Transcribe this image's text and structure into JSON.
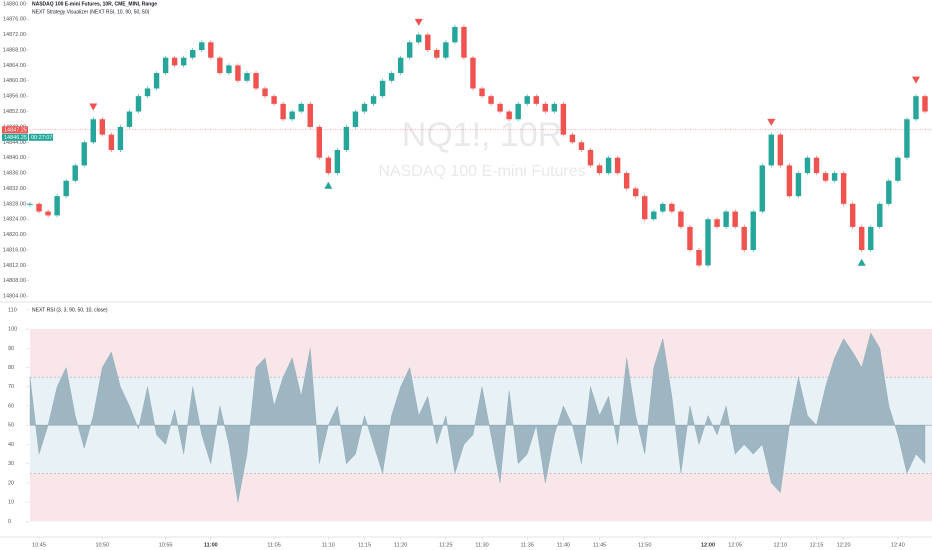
{
  "chart_data": {
    "type": "range-chart",
    "title": "NASDAQ 100 E-mini Futures, 10R, CME_MINI, Range",
    "subtitle": "NEXT Strategy Visualizer (NEXT RSI, 10, 90, 50, 50)",
    "watermark": "NQ1!, 10R",
    "watermark_subtitle": "NASDAQ 100 E-mini Futures",
    "last_price": 14847.25,
    "last_price_label": "14847.25",
    "bid_price": 14846.25,
    "bid_price_label": "14846.25",
    "countdown": "00:27:07",
    "up_color": "#26a69a",
    "down_color": "#ef5350",
    "ylim": [
      14803,
      14881
    ],
    "yticks": [
      {
        "value": 14804,
        "label": "14804.00"
      },
      {
        "value": 14808,
        "label": "14808.00"
      },
      {
        "value": 14812,
        "label": "14812.00"
      },
      {
        "value": 14816,
        "label": "14816.00"
      },
      {
        "value": 14820,
        "label": "14820.00"
      },
      {
        "value": 14824,
        "label": "14824.00"
      },
      {
        "value": 14828,
        "label": "14828.00"
      },
      {
        "value": 14832,
        "label": "14832.00"
      },
      {
        "value": 14836,
        "label": "14836.00"
      },
      {
        "value": 14840,
        "label": "14840.00"
      },
      {
        "value": 14844,
        "label": "14844.00"
      },
      {
        "value": 14848,
        "label": "14848.00"
      },
      {
        "value": 14852,
        "label": "14852.00"
      },
      {
        "value": 14856,
        "label": "14856.00"
      },
      {
        "value": 14860,
        "label": "14860.00"
      },
      {
        "value": 14864,
        "label": "14864.00"
      },
      {
        "value": 14868,
        "label": "14868.00"
      },
      {
        "value": 14872,
        "label": "14872.00"
      },
      {
        "value": 14876,
        "label": "14876.00"
      },
      {
        "value": 14880,
        "label": "14880.00"
      }
    ],
    "xlim": [
      0,
      99
    ],
    "xticks": [
      {
        "value": 1,
        "label": "10:45"
      },
      {
        "value": 8,
        "label": "10:50"
      },
      {
        "value": 15,
        "label": "10:55"
      },
      {
        "value": 20,
        "label": "11:00"
      },
      {
        "value": 27,
        "label": "11:05"
      },
      {
        "value": 33,
        "label": "11:10"
      },
      {
        "value": 37,
        "label": "11:15"
      },
      {
        "value": 41,
        "label": "11:20"
      },
      {
        "value": 46,
        "label": "11:25"
      },
      {
        "value": 50,
        "label": "11:30"
      },
      {
        "value": 55,
        "label": "11:35"
      },
      {
        "value": 59,
        "label": "11:40"
      },
      {
        "value": 63,
        "label": "11:45"
      },
      {
        "value": 68,
        "label": "11:50"
      },
      {
        "value": 75,
        "label": "12:00"
      },
      {
        "value": 78,
        "label": "12:05"
      },
      {
        "value": 83,
        "label": "12:10"
      },
      {
        "value": 87,
        "label": "12:15"
      },
      {
        "value": 90,
        "label": "12:20"
      },
      {
        "value": 96,
        "label": "12:40"
      }
    ],
    "values": [
      14828,
      14826,
      14825,
      14830,
      14834,
      14838,
      14844,
      14850,
      14846,
      14842,
      14848,
      14852,
      14856,
      14858,
      14862,
      14866,
      14864,
      14866,
      14868,
      14870,
      14866,
      14862,
      14864,
      14860,
      14862,
      14858,
      14856,
      14854,
      14850,
      14852,
      14854,
      14848,
      14840,
      14836,
      14842,
      14848,
      14852,
      14854,
      14856,
      14860,
      14862,
      14866,
      14870,
      14872,
      14868,
      14866,
      14870,
      14874,
      14866,
      14858,
      14856,
      14854,
      14852,
      14850,
      14854,
      14856,
      14854,
      14852,
      14854,
      14846,
      14844,
      14842,
      14838,
      14836,
      14840,
      14836,
      14832,
      14830,
      14824,
      14826,
      14828,
      14826,
      14822,
      14816,
      14812,
      14824,
      14822,
      14826,
      14822,
      14816,
      14826,
      14838,
      14846,
      14838,
      14830,
      14836,
      14840,
      14836,
      14834,
      14836,
      14828,
      14822,
      14816,
      14822,
      14828,
      14834,
      14840,
      14850,
      14856,
      14852
    ],
    "sell_signals": {
      "x": [
        7,
        43,
        82,
        98
      ],
      "y": [
        14852,
        14874,
        14848,
        14859
      ],
      "color": "#ef5350"
    },
    "buy_signals": {
      "x": [
        33,
        92
      ],
      "y": [
        14834,
        14814
      ],
      "color": "#26a69a"
    },
    "indicator": {
      "title": "NEXT RSI (3, 3, 90, 50, 10, close)",
      "ylim": [
        -5,
        112
      ],
      "yticks": [
        0,
        10,
        20,
        30,
        40,
        50,
        60,
        70,
        80,
        90,
        100,
        110
      ],
      "zone": [
        0,
        100
      ],
      "zone_color": "#f8e6e8",
      "band": [
        25,
        75
      ],
      "band_color": "#e8f1f6",
      "middle": 50,
      "color": "#9db6c2",
      "values": [
        75,
        35,
        50,
        70,
        80,
        55,
        38,
        55,
        80,
        88,
        70,
        60,
        48,
        70,
        45,
        40,
        58,
        35,
        70,
        45,
        30,
        60,
        40,
        10,
        35,
        80,
        85,
        60,
        75,
        85,
        65,
        90,
        30,
        50,
        60,
        30,
        35,
        55,
        40,
        25,
        55,
        70,
        80,
        55,
        65,
        40,
        55,
        25,
        40,
        45,
        70,
        45,
        20,
        68,
        30,
        35,
        50,
        20,
        45,
        60,
        50,
        30,
        70,
        55,
        65,
        40,
        85,
        55,
        35,
        80,
        95,
        65,
        25,
        60,
        40,
        55,
        45,
        60,
        35,
        40,
        35,
        40,
        20,
        15,
        50,
        75,
        55,
        50,
        70,
        85,
        95,
        88,
        80,
        98,
        90,
        60,
        45,
        25,
        35,
        30
      ]
    }
  }
}
